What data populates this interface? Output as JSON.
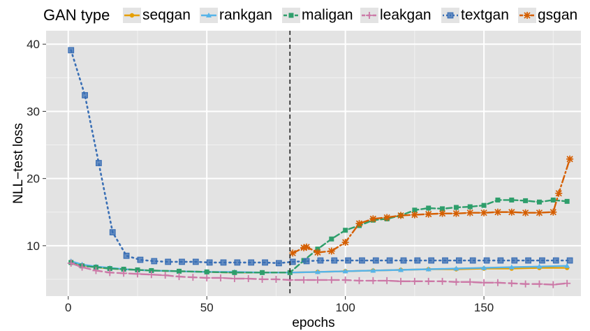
{
  "chart_data": {
    "type": "line",
    "xlabel": "epochs",
    "ylabel": "NLL−test loss",
    "xlim": [
      -8,
      185
    ],
    "ylim": [
      2.5,
      42
    ],
    "x_ticks": [
      0,
      50,
      100,
      150
    ],
    "y_ticks": [
      10,
      20,
      30,
      40
    ],
    "grid": true,
    "vline": 80,
    "legend": {
      "title": "GAN type",
      "placement": "top"
    },
    "series": [
      {
        "name": "seqgan",
        "color": "#E69F00",
        "marker": "circle",
        "dash": "solid",
        "x": [
          1,
          5,
          10,
          15,
          20,
          25,
          30,
          40,
          50,
          60,
          70,
          80,
          90,
          100,
          110,
          120,
          130,
          140,
          150,
          160,
          170,
          180
        ],
        "y": [
          7.6,
          7.1,
          6.8,
          6.6,
          6.5,
          6.4,
          6.3,
          6.2,
          6.1,
          6.0,
          6.0,
          6.0,
          6.1,
          6.2,
          6.3,
          6.4,
          6.5,
          6.5,
          6.6,
          6.6,
          6.7,
          6.7
        ]
      },
      {
        "name": "rankgan",
        "color": "#56B4E9",
        "marker": "triangle",
        "dash": "solid",
        "x": [
          1,
          5,
          10,
          15,
          20,
          25,
          30,
          40,
          50,
          60,
          70,
          80,
          90,
          100,
          110,
          120,
          130,
          140,
          150,
          160,
          170,
          180
        ],
        "y": [
          7.7,
          7.2,
          6.9,
          6.7,
          6.5,
          6.4,
          6.3,
          6.2,
          6.1,
          6.1,
          6.0,
          6.0,
          6.1,
          6.2,
          6.3,
          6.4,
          6.5,
          6.6,
          6.7,
          6.8,
          6.9,
          7.0
        ]
      },
      {
        "name": "maligan",
        "color": "#2E9E6B",
        "marker": "square",
        "dash": "dash",
        "x": [
          1,
          5,
          10,
          15,
          20,
          25,
          30,
          40,
          50,
          60,
          70,
          80,
          85,
          90,
          95,
          100,
          105,
          110,
          115,
          120,
          125,
          130,
          135,
          140,
          145,
          150,
          155,
          160,
          165,
          170,
          175,
          180
        ],
        "y": [
          7.5,
          7.0,
          6.8,
          6.6,
          6.5,
          6.4,
          6.3,
          6.2,
          6.1,
          6.0,
          6.0,
          6.0,
          7.8,
          9.5,
          11.0,
          12.3,
          13.0,
          13.8,
          14.0,
          14.5,
          15.3,
          15.6,
          15.5,
          15.7,
          15.8,
          16.0,
          16.8,
          16.8,
          16.7,
          16.5,
          16.8,
          16.6
        ]
      },
      {
        "name": "leakgan",
        "color": "#CC79A7",
        "marker": "plus",
        "dash": "longdash",
        "x": [
          1,
          5,
          10,
          15,
          20,
          25,
          30,
          35,
          40,
          45,
          50,
          55,
          60,
          65,
          70,
          75,
          80,
          85,
          90,
          95,
          100,
          105,
          110,
          115,
          120,
          125,
          130,
          135,
          140,
          145,
          150,
          155,
          160,
          165,
          170,
          175,
          180
        ],
        "y": [
          7.4,
          6.8,
          6.3,
          6.0,
          5.9,
          5.8,
          5.7,
          5.6,
          5.4,
          5.3,
          5.2,
          5.2,
          5.1,
          5.1,
          5.0,
          5.0,
          4.9,
          4.9,
          4.9,
          4.9,
          4.9,
          4.8,
          4.8,
          4.8,
          4.7,
          4.7,
          4.7,
          4.7,
          4.6,
          4.6,
          4.5,
          4.5,
          4.4,
          4.3,
          4.3,
          4.2,
          4.4
        ]
      },
      {
        "name": "textgan",
        "color": "#3A6FB5",
        "marker": "square-open",
        "dash": "dot",
        "x": [
          1,
          6,
          11,
          16,
          21,
          26,
          31,
          36,
          41,
          46,
          51,
          56,
          61,
          66,
          71,
          76,
          81,
          86,
          91,
          96,
          101,
          106,
          111,
          116,
          121,
          126,
          131,
          136,
          141,
          146,
          151,
          156,
          161,
          166,
          171,
          176,
          181
        ],
        "y": [
          39.1,
          32.4,
          22.3,
          12.0,
          8.5,
          7.9,
          7.7,
          7.6,
          7.6,
          7.6,
          7.5,
          7.5,
          7.5,
          7.5,
          7.5,
          7.4,
          7.6,
          7.7,
          7.8,
          7.8,
          7.8,
          7.8,
          7.8,
          7.8,
          7.8,
          7.8,
          7.8,
          7.8,
          7.8,
          7.8,
          7.8,
          7.8,
          7.8,
          7.8,
          7.8,
          7.8,
          7.8
        ]
      },
      {
        "name": "gsgan",
        "color": "#D55E00",
        "marker": "asterisk",
        "dash": "dashdot",
        "x": [
          81,
          85,
          86,
          90,
          95,
          100,
          105,
          110,
          115,
          120,
          125,
          130,
          135,
          140,
          145,
          150,
          155,
          160,
          165,
          170,
          175,
          177,
          181
        ],
        "y": [
          8.9,
          9.7,
          9.8,
          9.0,
          9.2,
          10.5,
          13.3,
          14.0,
          14.2,
          14.5,
          14.6,
          14.7,
          14.8,
          14.8,
          14.9,
          14.9,
          15.0,
          15.0,
          14.9,
          14.9,
          15.0,
          17.8,
          22.9
        ]
      }
    ]
  }
}
